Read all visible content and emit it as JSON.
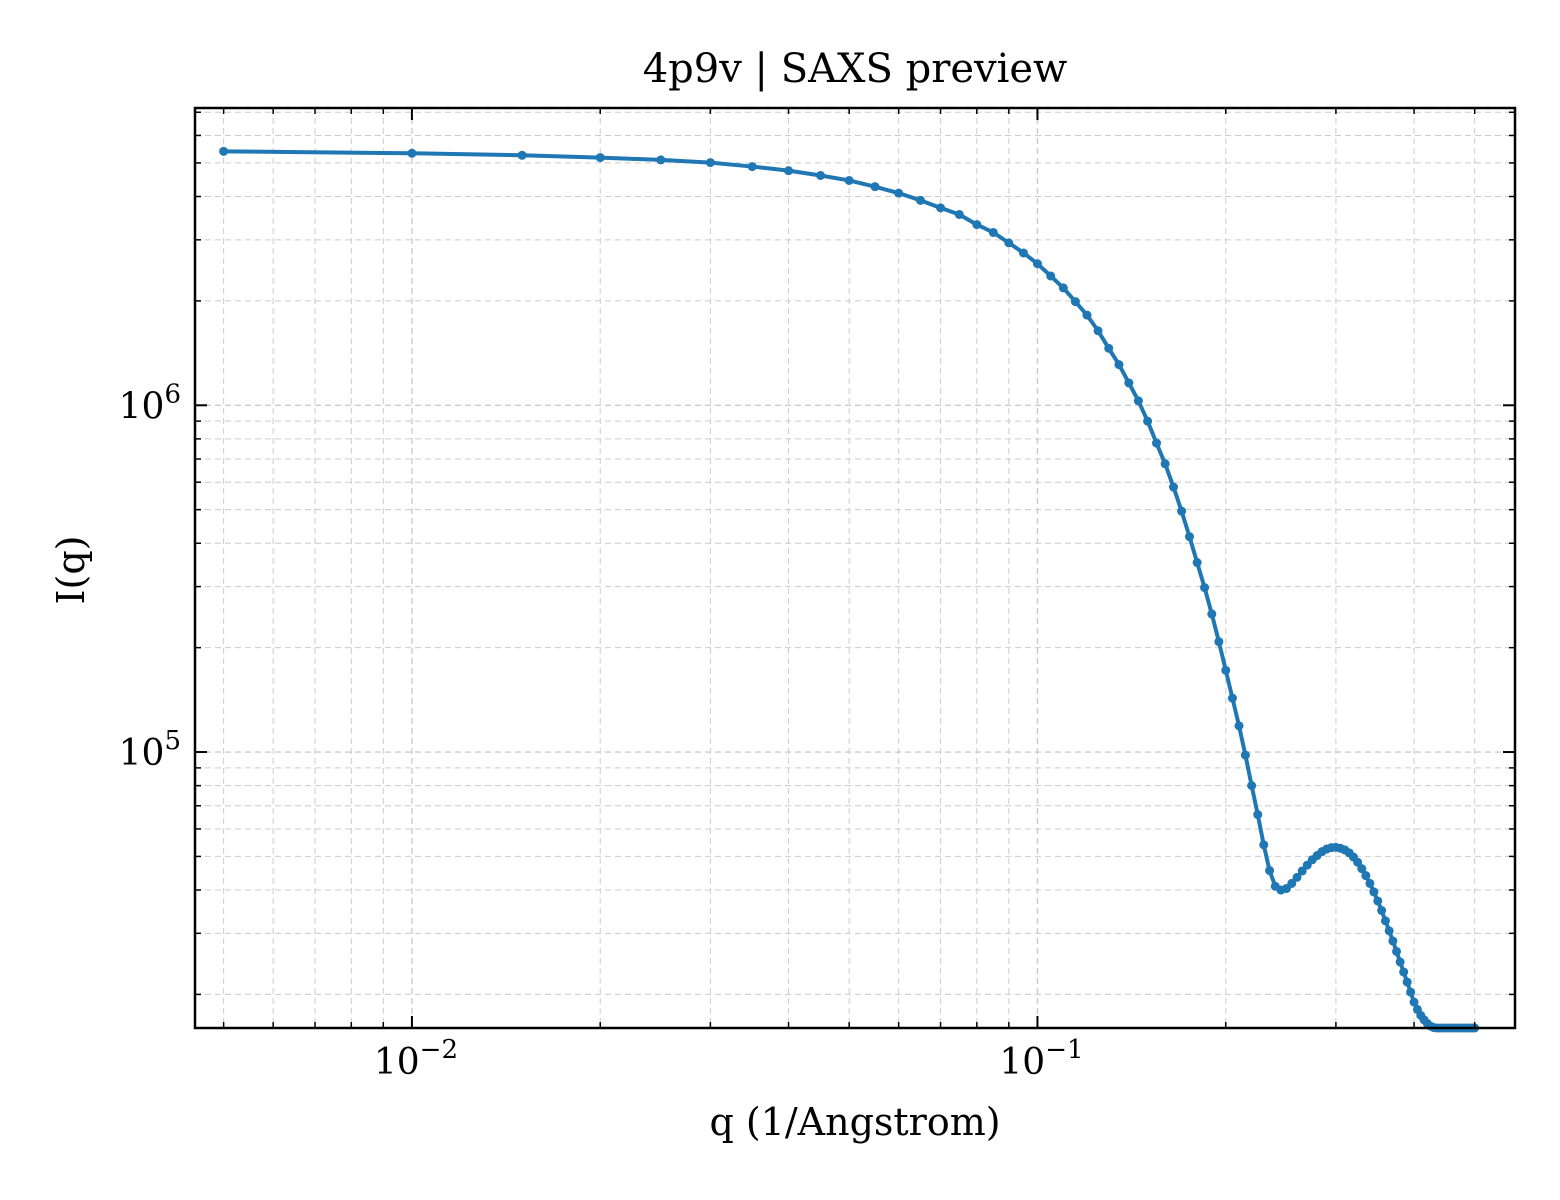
{
  "chart_data": {
    "type": "line",
    "title": "4p9v | SAXS preview",
    "xlabel": "q (1/Angstrom)",
    "ylabel": "I(q)",
    "xscale": "log",
    "yscale": "log",
    "xlim": [
      0.0045,
      0.58
    ],
    "ylim": [
      16000,
      7200000
    ],
    "grid": "on (major and minor, dashed)",
    "legend": "none",
    "colors": {
      "series": "#1f77b4",
      "grid": "#cccccc",
      "axes": "#000000"
    },
    "x_tick_labels": [
      {
        "value": 0.01,
        "base": "10",
        "exp": "−2"
      },
      {
        "value": 0.1,
        "base": "10",
        "exp": "−1"
      }
    ],
    "y_tick_labels": [
      {
        "value": 100000,
        "base": "10",
        "exp": "5"
      },
      {
        "value": 1000000,
        "base": "10",
        "exp": "6"
      }
    ],
    "series": [
      {
        "color": "#1f77b4",
        "marker": "dot",
        "x": [
          0.005,
          0.01,
          0.015,
          0.02,
          0.025,
          0.03,
          0.035,
          0.04,
          0.045,
          0.05,
          0.055,
          0.06,
          0.065,
          0.07,
          0.075,
          0.08,
          0.085,
          0.09,
          0.095,
          0.1,
          0.105,
          0.11,
          0.115,
          0.12,
          0.125,
          0.13,
          0.135,
          0.14,
          0.145,
          0.15,
          0.155,
          0.16,
          0.165,
          0.17,
          0.175,
          0.18,
          0.185,
          0.19,
          0.195,
          0.2,
          0.205,
          0.21,
          0.215,
          0.22,
          0.225,
          0.23,
          0.235,
          0.24,
          0.245,
          0.25,
          0.255,
          0.26,
          0.265,
          0.27,
          0.275,
          0.28,
          0.285,
          0.29,
          0.295,
          0.3,
          0.305,
          0.31,
          0.315,
          0.32,
          0.325,
          0.33,
          0.335,
          0.34,
          0.345,
          0.35,
          0.355,
          0.36,
          0.365,
          0.37,
          0.375,
          0.38,
          0.385,
          0.39,
          0.395,
          0.4,
          0.405,
          0.41,
          0.415,
          0.42,
          0.425,
          0.43,
          0.435,
          0.44,
          0.445,
          0.45,
          0.455,
          0.46,
          0.465,
          0.47,
          0.475,
          0.48,
          0.485,
          0.49,
          0.495,
          0.5
        ],
        "y": [
          5400000,
          5330000,
          5260000,
          5180000,
          5100000,
          5010000,
          4880000,
          4750000,
          4600000,
          4450000,
          4270000,
          4090000,
          3900000,
          3710000,
          3550000,
          3320000,
          3150000,
          2940000,
          2750000,
          2560000,
          2360000,
          2180000,
          1990000,
          1820000,
          1640000,
          1460000,
          1310000,
          1160000,
          1030000,
          900000,
          778000,
          678000,
          581000,
          495000,
          418000,
          352000,
          298000,
          250000,
          208000,
          172000,
          143000,
          119000,
          98000,
          80000,
          66000,
          54000,
          45500,
          41000,
          40000,
          40400,
          41800,
          43500,
          45400,
          47200,
          48900,
          50300,
          51600,
          52500,
          53000,
          53100,
          52800,
          52200,
          51200,
          49800,
          48100,
          46100,
          44000,
          41800,
          39500,
          37200,
          34900,
          32600,
          30500,
          28500,
          26600,
          24800,
          23200,
          21700,
          20300,
          19000,
          18100,
          17400,
          16900,
          16500,
          16200,
          16050,
          16000,
          16000,
          16000,
          16000,
          16000,
          16000,
          16000,
          16000,
          16000,
          16000,
          16000,
          16000,
          16000,
          16000
        ]
      }
    ]
  }
}
